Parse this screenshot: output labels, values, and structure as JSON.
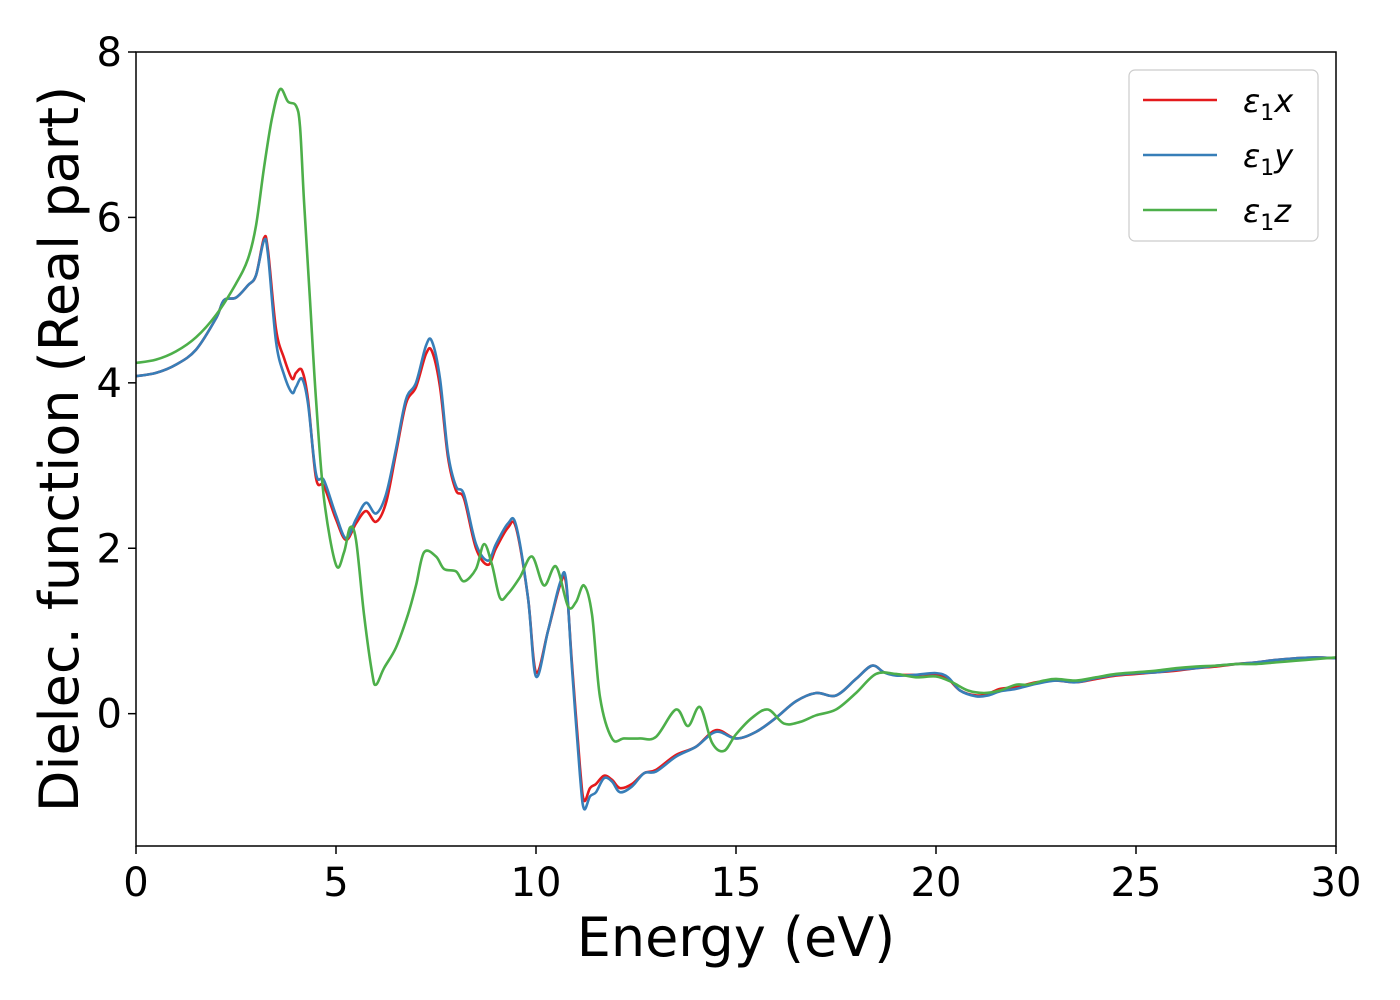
{
  "chart_data": {
    "type": "line",
    "xlabel": "Energy (eV)",
    "ylabel": "Dielec. function (Real part)",
    "xlim": [
      0,
      30
    ],
    "ylim": [
      -1.6,
      8
    ],
    "xticks": [
      0,
      5,
      10,
      15,
      20,
      25,
      30
    ],
    "yticks": [
      0,
      2,
      4,
      6,
      8
    ],
    "grid": false,
    "legend_position": "top-right",
    "series": [
      {
        "name": "ε1x",
        "legend_base": "ε",
        "legend_sub": "1",
        "legend_suffix": "x",
        "color": "#e41a1c",
        "x": [
          0,
          0.5,
          1.0,
          1.5,
          2.0,
          2.2,
          2.5,
          2.8,
          3.0,
          3.2,
          3.3,
          3.5,
          3.7,
          3.9,
          4.0,
          4.15,
          4.3,
          4.5,
          4.7,
          5.0,
          5.25,
          5.5,
          5.75,
          6.0,
          6.25,
          6.5,
          6.75,
          7.0,
          7.25,
          7.4,
          7.6,
          7.8,
          8.0,
          8.2,
          8.5,
          8.8,
          9.0,
          9.3,
          9.5,
          9.8,
          10.0,
          10.3,
          10.6,
          10.75,
          10.9,
          11.1,
          11.2,
          11.35,
          11.5,
          11.7,
          11.9,
          12.1,
          12.4,
          12.7,
          13.0,
          13.5,
          14.0,
          14.5,
          15.0,
          15.5,
          16.0,
          16.5,
          17.0,
          17.5,
          18.0,
          18.4,
          18.7,
          19.0,
          19.5,
          20.0,
          20.3,
          20.6,
          21.0,
          21.3,
          21.6,
          22.0,
          22.5,
          23.0,
          23.5,
          24.0,
          24.5,
          25.0,
          25.5,
          26.0,
          26.5,
          27.0,
          27.5,
          28.0,
          28.5,
          29.0,
          29.5,
          30.0
        ],
        "y": [
          4.08,
          4.12,
          4.22,
          4.4,
          4.78,
          5.0,
          5.03,
          5.18,
          5.3,
          5.75,
          5.6,
          4.65,
          4.3,
          4.05,
          4.12,
          4.15,
          3.8,
          2.85,
          2.75,
          2.35,
          2.1,
          2.3,
          2.45,
          2.32,
          2.55,
          3.15,
          3.75,
          3.95,
          4.35,
          4.38,
          3.95,
          3.1,
          2.7,
          2.6,
          2.0,
          1.8,
          2.0,
          2.25,
          2.25,
          1.4,
          0.5,
          1.0,
          1.55,
          1.58,
          0.6,
          -0.65,
          -1.05,
          -0.9,
          -0.85,
          -0.75,
          -0.8,
          -0.9,
          -0.85,
          -0.72,
          -0.68,
          -0.5,
          -0.4,
          -0.2,
          -0.3,
          -0.22,
          -0.05,
          0.15,
          0.25,
          0.22,
          0.42,
          0.58,
          0.5,
          0.47,
          0.47,
          0.47,
          0.42,
          0.28,
          0.22,
          0.24,
          0.3,
          0.32,
          0.38,
          0.4,
          0.38,
          0.42,
          0.46,
          0.48,
          0.5,
          0.52,
          0.55,
          0.57,
          0.6,
          0.62,
          0.65,
          0.67,
          0.68,
          0.67
        ]
      },
      {
        "name": "ε1y",
        "legend_base": "ε",
        "legend_sub": "1",
        "legend_suffix": "y",
        "color": "#377eb8",
        "x": [
          0,
          0.5,
          1.0,
          1.5,
          2.0,
          2.2,
          2.5,
          2.8,
          3.0,
          3.2,
          3.3,
          3.5,
          3.7,
          3.9,
          4.0,
          4.15,
          4.3,
          4.5,
          4.7,
          5.0,
          5.25,
          5.5,
          5.75,
          6.0,
          6.25,
          6.5,
          6.75,
          7.0,
          7.25,
          7.4,
          7.6,
          7.8,
          8.0,
          8.2,
          8.5,
          8.8,
          9.0,
          9.3,
          9.5,
          9.8,
          10.0,
          10.3,
          10.6,
          10.75,
          10.9,
          11.1,
          11.2,
          11.35,
          11.5,
          11.7,
          11.9,
          12.1,
          12.4,
          12.7,
          13.0,
          13.5,
          14.0,
          14.5,
          15.0,
          15.5,
          16.0,
          16.5,
          17.0,
          17.5,
          18.0,
          18.4,
          18.7,
          19.0,
          19.5,
          20.0,
          20.3,
          20.6,
          21.0,
          21.3,
          21.6,
          22.0,
          22.5,
          23.0,
          23.5,
          24.0,
          24.5,
          25.0,
          25.5,
          26.0,
          26.5,
          27.0,
          27.5,
          28.0,
          28.5,
          29.0,
          29.5,
          30.0
        ],
        "y": [
          4.08,
          4.12,
          4.22,
          4.4,
          4.78,
          5.0,
          5.03,
          5.18,
          5.3,
          5.72,
          5.55,
          4.5,
          4.1,
          3.88,
          3.95,
          4.05,
          3.75,
          2.9,
          2.82,
          2.4,
          2.12,
          2.35,
          2.55,
          2.42,
          2.65,
          3.2,
          3.8,
          4.0,
          4.45,
          4.5,
          4.05,
          3.15,
          2.75,
          2.65,
          2.05,
          1.85,
          2.05,
          2.3,
          2.28,
          1.4,
          0.45,
          1.0,
          1.58,
          1.62,
          0.55,
          -0.75,
          -1.15,
          -1.0,
          -0.95,
          -0.78,
          -0.82,
          -0.95,
          -0.88,
          -0.72,
          -0.7,
          -0.52,
          -0.4,
          -0.22,
          -0.3,
          -0.22,
          -0.05,
          0.15,
          0.25,
          0.22,
          0.42,
          0.58,
          0.5,
          0.46,
          0.47,
          0.49,
          0.44,
          0.28,
          0.21,
          0.22,
          0.27,
          0.3,
          0.36,
          0.4,
          0.38,
          0.43,
          0.47,
          0.49,
          0.5,
          0.53,
          0.55,
          0.58,
          0.6,
          0.62,
          0.65,
          0.67,
          0.68,
          0.67
        ]
      },
      {
        "name": "ε1z",
        "legend_base": "ε",
        "legend_sub": "1",
        "legend_suffix": "z",
        "color": "#4daf4a",
        "x": [
          0,
          0.5,
          1.0,
          1.5,
          2.0,
          2.5,
          2.8,
          3.0,
          3.2,
          3.4,
          3.6,
          3.8,
          4.0,
          4.1,
          4.2,
          4.35,
          4.5,
          4.7,
          5.0,
          5.2,
          5.35,
          5.5,
          5.7,
          5.9,
          6.0,
          6.2,
          6.5,
          6.8,
          7.0,
          7.2,
          7.5,
          7.7,
          8.0,
          8.2,
          8.5,
          8.7,
          8.9,
          9.1,
          9.3,
          9.6,
          9.9,
          10.2,
          10.5,
          10.8,
          11.0,
          11.2,
          11.4,
          11.6,
          11.9,
          12.2,
          12.6,
          13.0,
          13.5,
          13.8,
          14.1,
          14.4,
          14.7,
          15.0,
          15.4,
          15.8,
          16.2,
          16.6,
          17.0,
          17.5,
          18.0,
          18.5,
          19.0,
          19.5,
          20.0,
          20.4,
          20.8,
          21.2,
          21.6,
          22.0,
          22.3,
          22.7,
          23.0,
          23.5,
          24.0,
          24.5,
          25.0,
          25.5,
          26.0,
          26.5,
          27.0,
          27.5,
          28.0,
          28.5,
          29.0,
          29.5,
          30.0
        ],
        "y": [
          4.24,
          4.28,
          4.38,
          4.55,
          4.82,
          5.2,
          5.5,
          5.9,
          6.6,
          7.2,
          7.55,
          7.4,
          7.35,
          7.1,
          6.2,
          5.0,
          3.8,
          2.6,
          1.8,
          1.95,
          2.25,
          2.1,
          1.2,
          0.5,
          0.35,
          0.55,
          0.8,
          1.2,
          1.55,
          1.95,
          1.9,
          1.75,
          1.72,
          1.6,
          1.75,
          2.05,
          1.8,
          1.4,
          1.45,
          1.65,
          1.9,
          1.55,
          1.78,
          1.3,
          1.35,
          1.55,
          1.2,
          0.2,
          -0.3,
          -0.3,
          -0.3,
          -0.28,
          0.05,
          -0.15,
          0.08,
          -0.35,
          -0.45,
          -0.25,
          -0.05,
          0.05,
          -0.12,
          -0.1,
          -0.02,
          0.05,
          0.25,
          0.48,
          0.48,
          0.44,
          0.45,
          0.38,
          0.28,
          0.25,
          0.28,
          0.35,
          0.35,
          0.4,
          0.42,
          0.4,
          0.44,
          0.48,
          0.5,
          0.52,
          0.55,
          0.57,
          0.58,
          0.6,
          0.6,
          0.62,
          0.64,
          0.66,
          0.68
        ]
      }
    ]
  }
}
